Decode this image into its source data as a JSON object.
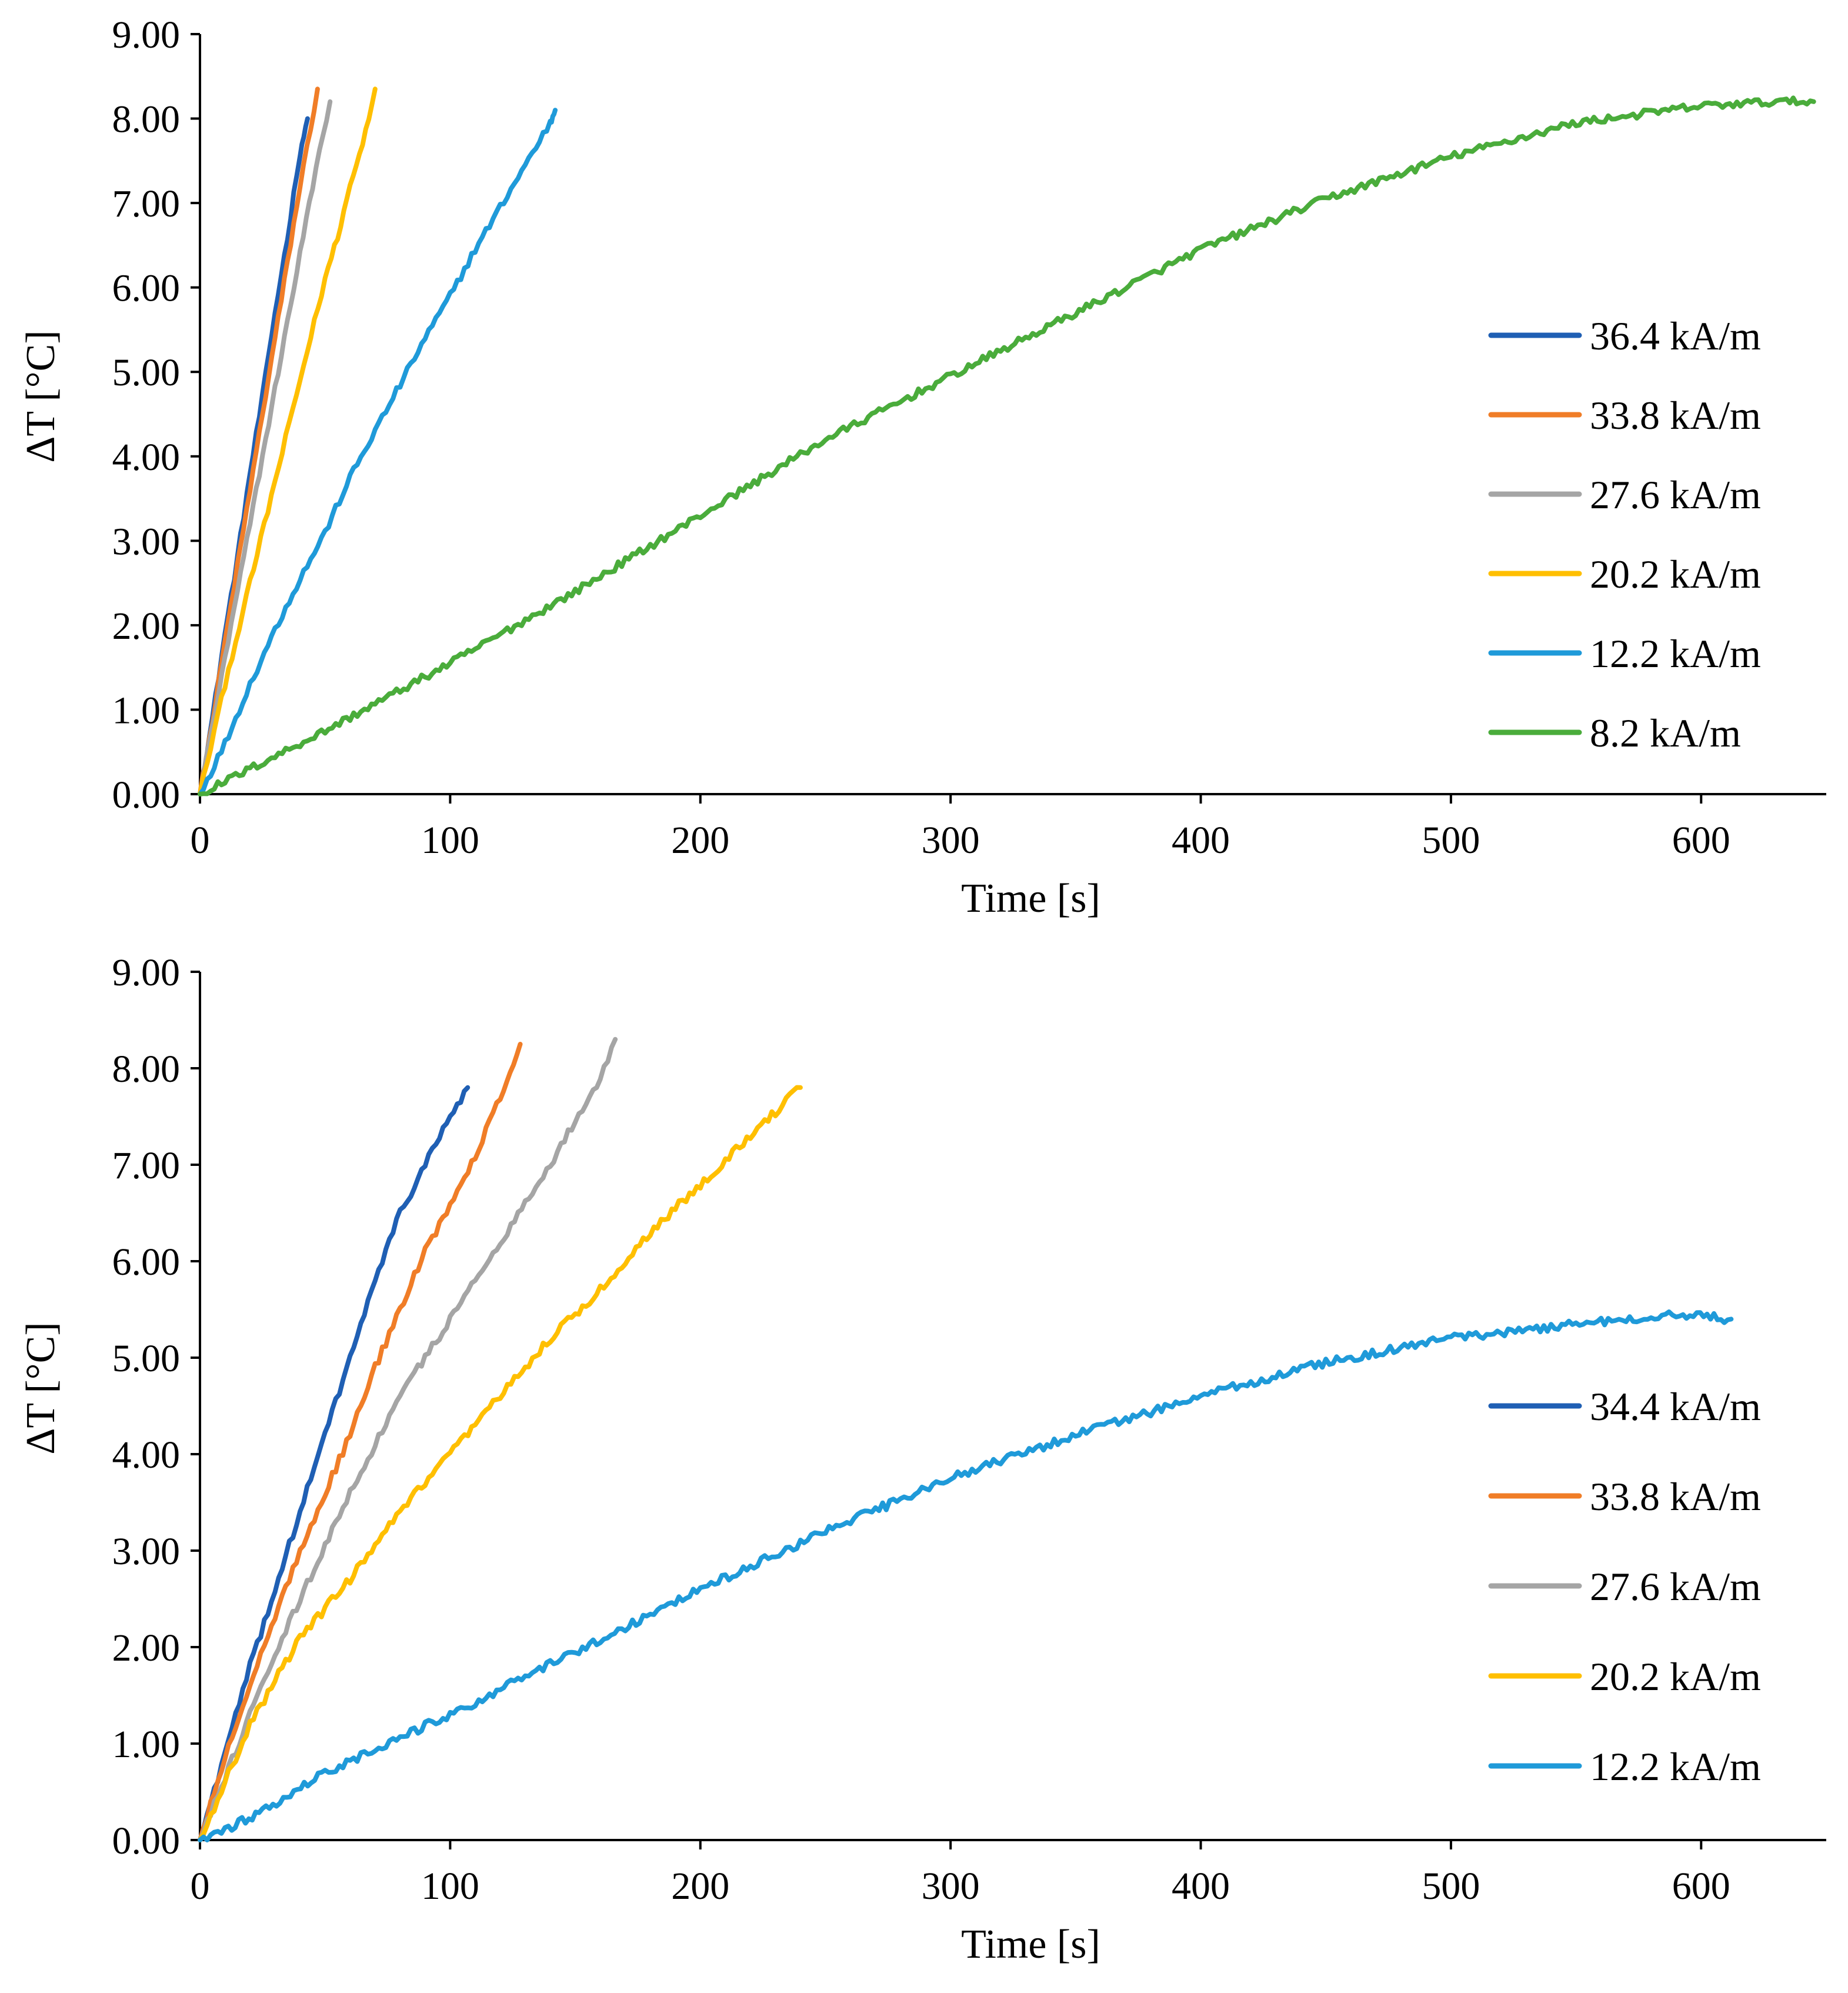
{
  "chart_data": [
    {
      "type": "line",
      "xlabel": "Time [s]",
      "ylabel": "ΔT [°C]",
      "xlim": [
        0,
        650
      ],
      "ylim": [
        0,
        9
      ],
      "xticks": [
        0,
        100,
        200,
        300,
        400,
        500,
        600
      ],
      "xtick_labels": [
        "0",
        "100",
        "200",
        "300",
        "400",
        "500",
        "600"
      ],
      "yticks": [
        0,
        1,
        2,
        3,
        4,
        5,
        6,
        7,
        8,
        9
      ],
      "ytick_labels": [
        "0.00",
        "1.00",
        "2.00",
        "3.00",
        "4.00",
        "5.00",
        "6.00",
        "7.00",
        "8.00",
        "9.00"
      ],
      "legend_position": "right",
      "series": [
        {
          "name": "36.4 kA/m",
          "color": "#1f5fb4",
          "x": [
            0,
            5,
            10,
            15,
            20,
            25,
            30,
            35,
            40,
            43
          ],
          "y": [
            0,
            0.9,
            1.9,
            2.8,
            3.8,
            4.7,
            5.7,
            6.6,
            7.6,
            8.0
          ]
        },
        {
          "name": "33.8 kA/m",
          "color": "#f07d27",
          "x": [
            0,
            5,
            10,
            15,
            20,
            25,
            30,
            35,
            40,
            47
          ],
          "y": [
            0,
            0.85,
            1.8,
            2.7,
            3.6,
            4.5,
            5.4,
            6.3,
            7.2,
            8.35
          ]
        },
        {
          "name": "27.6 kA/m",
          "color": "#a5a5a5",
          "x": [
            0,
            5,
            10,
            15,
            20,
            25,
            30,
            35,
            40,
            45,
            52
          ],
          "y": [
            0,
            0.8,
            1.6,
            2.4,
            3.2,
            4.0,
            4.8,
            5.6,
            6.4,
            7.2,
            8.2
          ]
        },
        {
          "name": "20.2 kA/m",
          "color": "#ffbf00",
          "x": [
            0,
            10,
            20,
            30,
            40,
            50,
            55,
            60,
            65,
            70
          ],
          "y": [
            0,
            1.3,
            2.5,
            3.7,
            4.9,
            6.1,
            6.6,
            7.2,
            7.7,
            8.35
          ]
        },
        {
          "name": "12.2 kA/m",
          "color": "#1f9ad9",
          "x": [
            0,
            10,
            20,
            30,
            40,
            50,
            60,
            70,
            80,
            90,
            100,
            110,
            120,
            130,
            140,
            142
          ],
          "y": [
            0,
            0.6,
            1.3,
            1.95,
            2.55,
            3.1,
            3.75,
            4.3,
            4.85,
            5.4,
            5.9,
            6.45,
            6.95,
            7.45,
            7.95,
            8.1
          ]
        },
        {
          "name": "8.2 kA/m",
          "color": "#4aac3b",
          "x": [
            0,
            50,
            100,
            150,
            200,
            250,
            300,
            350,
            400,
            450,
            500,
            550,
            600,
            630,
            645
          ],
          "y": [
            0,
            0.75,
            1.55,
            2.4,
            3.3,
            4.2,
            4.95,
            5.7,
            6.45,
            7.05,
            7.55,
            7.95,
            8.15,
            8.2,
            8.2
          ]
        }
      ]
    },
    {
      "type": "line",
      "xlabel": "Time [s]",
      "ylabel": "ΔT [°C]",
      "xlim": [
        0,
        650
      ],
      "ylim": [
        0,
        9
      ],
      "xticks": [
        0,
        100,
        200,
        300,
        400,
        500,
        600
      ],
      "xtick_labels": [
        "0",
        "100",
        "200",
        "300",
        "400",
        "500",
        "600"
      ],
      "yticks": [
        0,
        1,
        2,
        3,
        4,
        5,
        6,
        7,
        8,
        9
      ],
      "ytick_labels": [
        "0.00",
        "1.00",
        "2.00",
        "3.00",
        "4.00",
        "5.00",
        "6.00",
        "7.00",
        "8.00",
        "9.00"
      ],
      "legend_position": "right",
      "series": [
        {
          "name": "34.4 kA/m",
          "color": "#1f5fb4",
          "x": [
            0,
            10,
            20,
            30,
            40,
            50,
            60,
            70,
            80,
            90,
            100,
            107
          ],
          "y": [
            0,
            0.9,
            1.8,
            2.6,
            3.4,
            4.2,
            5.0,
            5.8,
            6.5,
            7.0,
            7.5,
            7.8
          ]
        },
        {
          "name": "33.8 kA/m",
          "color": "#f07d27",
          "x": [
            0,
            10,
            20,
            30,
            40,
            50,
            60,
            70,
            80,
            90,
            100,
            110,
            120,
            128
          ],
          "y": [
            0,
            0.85,
            1.6,
            2.3,
            3.0,
            3.6,
            4.2,
            4.9,
            5.5,
            6.1,
            6.6,
            7.1,
            7.7,
            8.25
          ]
        },
        {
          "name": "27.6 kA/m",
          "color": "#a5a5a5",
          "x": [
            0,
            20,
            40,
            60,
            80,
            100,
            120,
            140,
            160,
            166
          ],
          "y": [
            0,
            1.3,
            2.5,
            3.6,
            4.6,
            5.4,
            6.2,
            7.0,
            7.9,
            8.3
          ]
        },
        {
          "name": "20.2 kA/m",
          "color": "#ffbf00",
          "x": [
            0,
            20,
            40,
            60,
            80,
            100,
            120,
            140,
            160,
            180,
            200,
            220,
            240
          ],
          "y": [
            0,
            1.2,
            2.1,
            2.7,
            3.4,
            4.0,
            4.6,
            5.2,
            5.7,
            6.3,
            6.8,
            7.3,
            7.8
          ]
        },
        {
          "name": "12.2 kA/m",
          "color": "#1f9ad9",
          "x": [
            0,
            10,
            25,
            50,
            100,
            150,
            200,
            250,
            300,
            350,
            400,
            450,
            500,
            550,
            590,
            612
          ],
          "y": [
            0,
            0.1,
            0.3,
            0.7,
            1.3,
            1.95,
            2.6,
            3.2,
            3.75,
            4.2,
            4.6,
            4.95,
            5.2,
            5.35,
            5.45,
            5.4
          ]
        }
      ]
    }
  ]
}
